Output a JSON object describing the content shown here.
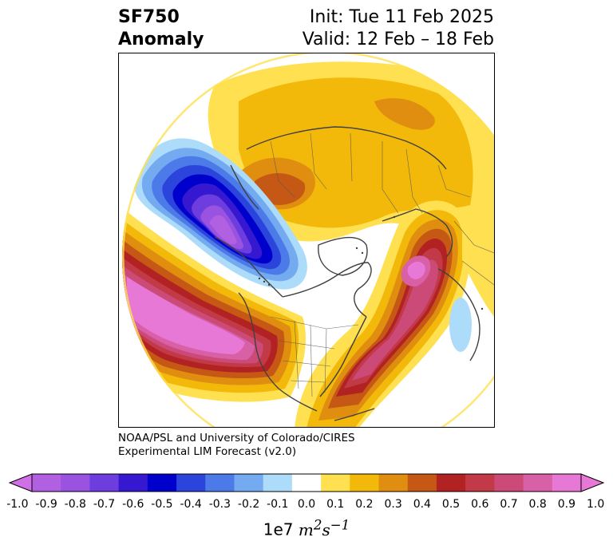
{
  "header": {
    "title_line1": "SF750",
    "title_line2": "Anomaly",
    "init": "Init: Tue 11 Feb 2025",
    "valid": "Valid: 12 Feb – 18 Feb"
  },
  "credit": {
    "line1": "NOAA/PSL and University of Colorado/CIRES",
    "line2": "Experimental LIM Forecast (v2.0)"
  },
  "colorbar": {
    "multiplier": "1e7",
    "ticks": [
      "-1.0",
      "-0.9",
      "-0.8",
      "-0.7",
      "-0.6",
      "-0.5",
      "-0.4",
      "-0.3",
      "-0.2",
      "-0.1",
      "0.0",
      "0.1",
      "0.2",
      "0.3",
      "0.4",
      "0.5",
      "0.6",
      "0.7",
      "0.8",
      "0.9",
      "1.0"
    ],
    "colors": [
      "#b060e0",
      "#9a52e0",
      "#6e3de0",
      "#3518d0",
      "#0000cc",
      "#2a44dc",
      "#4c7ae8",
      "#74aaf0",
      "#acdcfa",
      "#ffffff",
      "#ffe050",
      "#f2b80a",
      "#e08e10",
      "#c65816",
      "#b22222",
      "#c23a48",
      "#cc4a78",
      "#d860a6",
      "#e878d6"
    ],
    "under_color": "#d070e8",
    "over_color": "#e878d6"
  },
  "map": {
    "projection": "north-polar-stereographic",
    "field": "750 hPa streamfunction anomaly",
    "features": [
      {
        "name": "negative-anomaly-north-pacific",
        "sign": "negative",
        "peak": -0.7
      },
      {
        "name": "positive-anomaly-west-coast-pacific",
        "sign": "positive",
        "peak": 0.9
      },
      {
        "name": "positive-anomaly-eastern-us-atlantic",
        "sign": "positive",
        "peak": 0.8
      },
      {
        "name": "positive-anomaly-north-africa",
        "sign": "positive",
        "peak": 0.9
      },
      {
        "name": "positive-anomaly-asia-arctic",
        "sign": "positive",
        "peak": 0.4
      },
      {
        "name": "negative-anomaly-indian-ocean",
        "sign": "negative",
        "peak": -0.2
      }
    ]
  }
}
